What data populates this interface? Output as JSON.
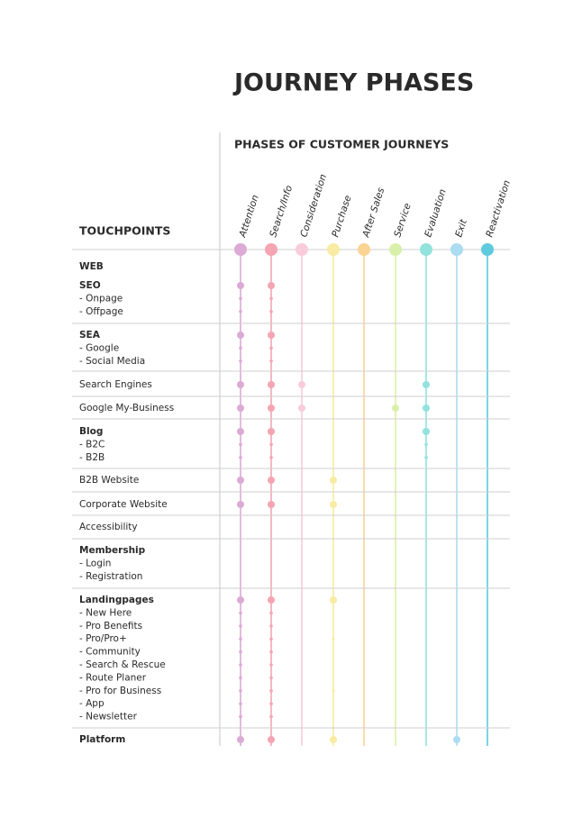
{
  "title": "JOURNEY PHASES",
  "subtitle": "PHASES OF CUSTOMER JOURNEYS",
  "touchpoints_label": "TOUCHPOINTS",
  "phases": [
    "Attention",
    "Search/Info",
    "Consideration",
    "Purchase",
    "After Sales",
    "Service",
    "Evaluation",
    "Exit",
    "Reactivation"
  ],
  "groups": [
    {
      "title": "WEB"
    },
    {
      "title": "SEO",
      "items": [
        "- Onpage",
        "- Offpage"
      ]
    },
    {
      "title": "SEA",
      "items": [
        "- Google",
        "- Social Media"
      ]
    },
    {
      "title": "Search Engines"
    },
    {
      "title": "Google My-Business"
    },
    {
      "title": "Blog",
      "items": [
        "- B2C",
        "- B2B"
      ]
    },
    {
      "title": "B2B Website"
    },
    {
      "title": "Corporate Website"
    },
    {
      "title": "Accessibility"
    },
    {
      "title": "Membership",
      "items": [
        "- Login",
        "- Registration"
      ]
    },
    {
      "title": "Landingpages",
      "items": [
        "- New Here",
        "- Pro Benefits",
        "- Pro/Pro+",
        "- Community",
        "- Search & Rescue",
        "- Route Planer",
        "- Pro for Business",
        "- App",
        "- Newsletter"
      ]
    },
    {
      "title": "Platform"
    }
  ]
}
